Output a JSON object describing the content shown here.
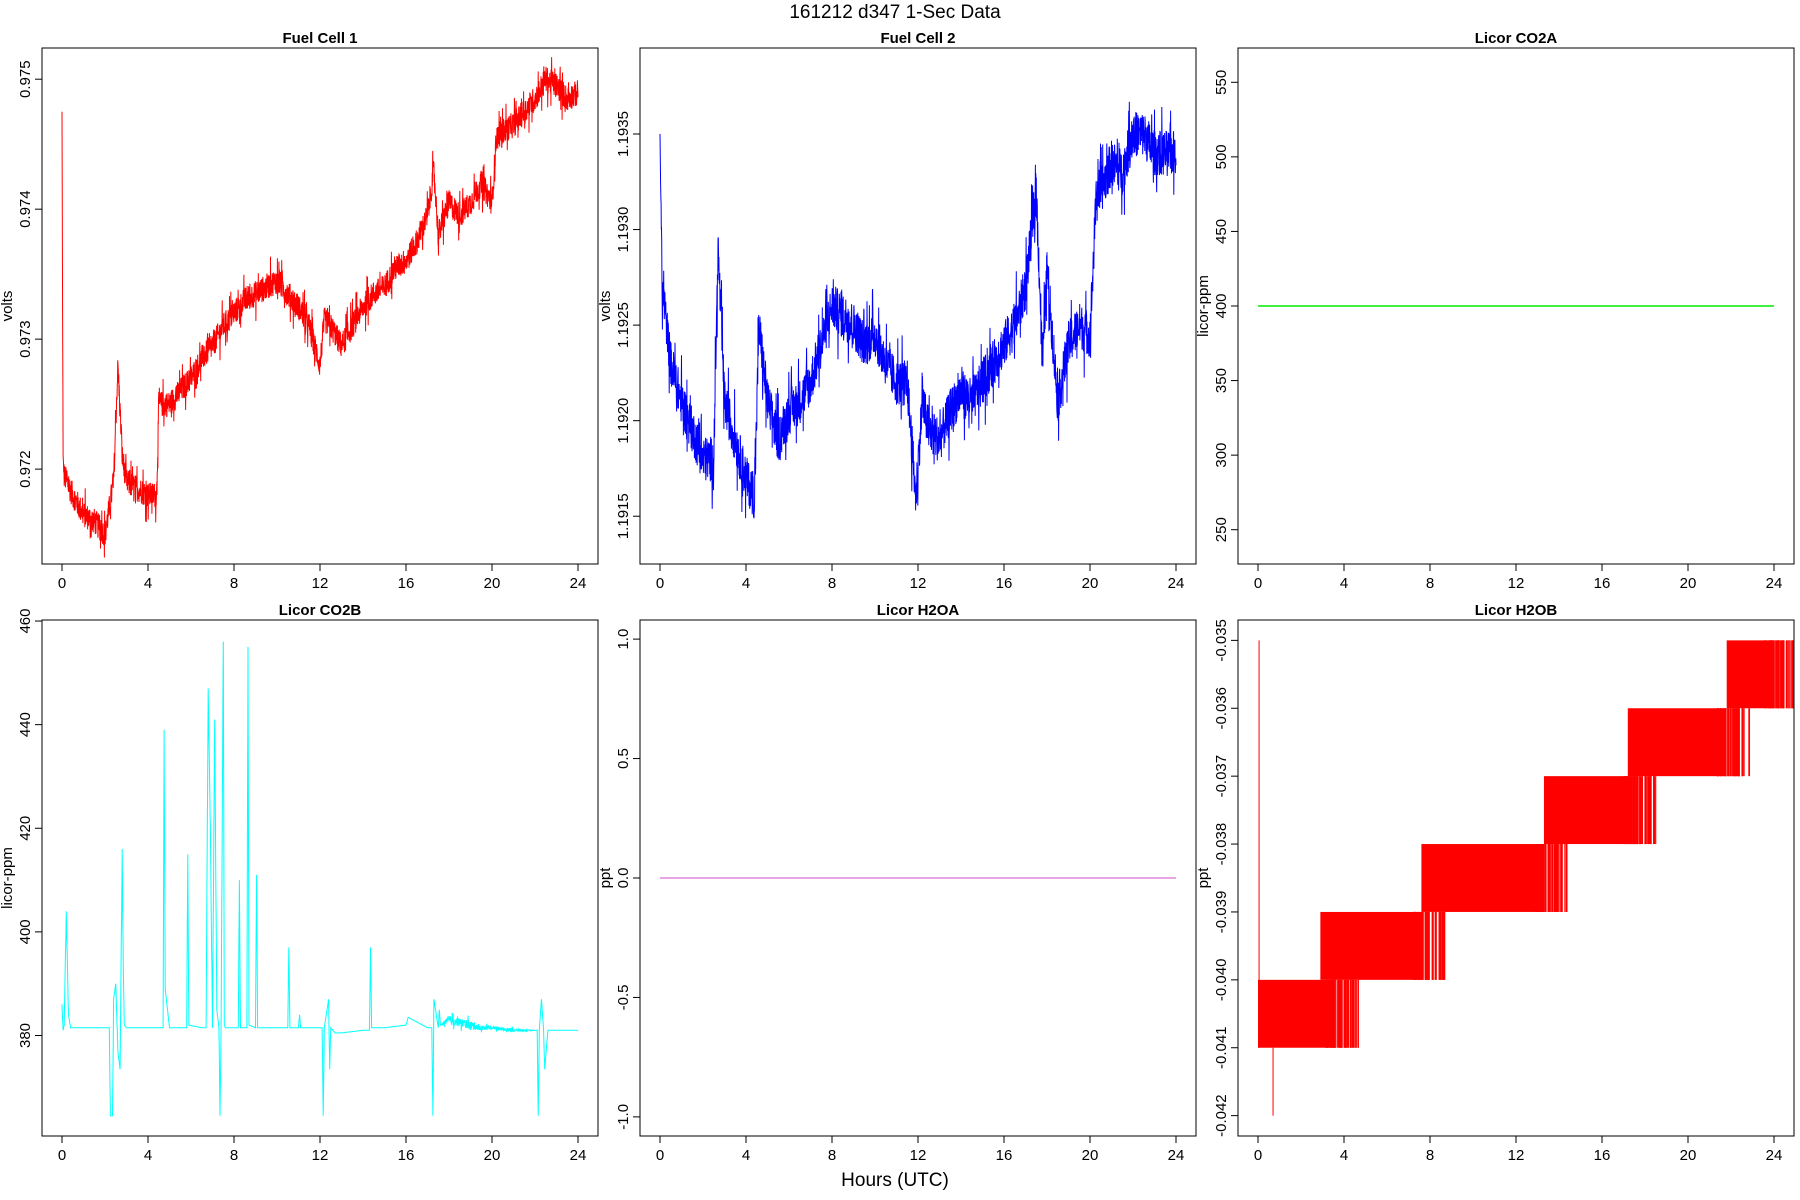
{
  "figure": {
    "title": "161212   d347   1-Sec Data",
    "xlabel": "Hours (UTC)"
  },
  "chart_data": [
    {
      "type": "line",
      "title": "Fuel Cell 1",
      "ylabel": "volts",
      "xlabel": "",
      "color": "#ff0000",
      "xlim": [
        0,
        24
      ],
      "ylim": [
        0.97127,
        0.97524
      ],
      "xticks": [
        0,
        4,
        8,
        12,
        16,
        20,
        24
      ],
      "yticks": [
        0.972,
        0.973,
        0.974,
        0.975
      ],
      "ytick_labels": [
        "0.972",
        "0.973",
        "0.974",
        "0.975"
      ],
      "series": [
        {
          "x": [
            0.0,
            0.05,
            0.1,
            0.5,
            1.0,
            1.5,
            2.0,
            2.4,
            2.6,
            2.8,
            3.0,
            3.5,
            4.0,
            4.4,
            4.5,
            5.0,
            5.5,
            6.0,
            6.5,
            7.0,
            7.5,
            8.0,
            8.5,
            9.0,
            9.5,
            10.0,
            10.5,
            11.0,
            11.5,
            12.0,
            12.2,
            12.5,
            13.0,
            13.5,
            14.0,
            14.5,
            15.0,
            15.5,
            16.0,
            16.5,
            17.0,
            17.3,
            17.5,
            18.0,
            18.5,
            19.0,
            19.5,
            20.0,
            20.2,
            20.5,
            21.0,
            21.5,
            22.0,
            22.5,
            23.0,
            23.5,
            24.0
          ],
          "y": [
            0.97475,
            0.9721,
            0.97195,
            0.9718,
            0.97165,
            0.9716,
            0.9715,
            0.9719,
            0.9728,
            0.9721,
            0.9719,
            0.97185,
            0.9718,
            0.9718,
            0.9725,
            0.9725,
            0.9726,
            0.9727,
            0.97285,
            0.97295,
            0.9731,
            0.9732,
            0.9733,
            0.97335,
            0.9734,
            0.97345,
            0.97335,
            0.97325,
            0.9731,
            0.9728,
            0.97315,
            0.9731,
            0.97295,
            0.9731,
            0.97325,
            0.97335,
            0.9734,
            0.97355,
            0.9736,
            0.97375,
            0.97395,
            0.9743,
            0.9738,
            0.97405,
            0.97395,
            0.97405,
            0.9742,
            0.97405,
            0.97455,
            0.9746,
            0.97465,
            0.97475,
            0.97485,
            0.975,
            0.97495,
            0.97485,
            0.9749
          ],
          "noise": [
            0,
            0,
            0.0001,
            0.0001,
            0.0001,
            0.0001,
            0.0001,
            0.0001,
            0.0001,
            0.0001,
            0.0001,
            0.0001,
            0.0001,
            0.0001,
            0.0001,
            0.0001,
            0.0001,
            0.0001,
            0.0001,
            0.0001,
            0.0001,
            0.0001,
            0.0001,
            0.0001,
            0.0001,
            0.0001,
            0.0001,
            0.0001,
            0.0001,
            0.0001,
            0.0001,
            0.0001,
            0.0001,
            0.0001,
            0.0001,
            0.0001,
            0.0001,
            0.0001,
            0.0001,
            0.0001,
            0.0001,
            0.0001,
            0.0001,
            0.0001,
            0.0001,
            0.0001,
            0.0001,
            0.0001,
            0.0001,
            0.0001,
            0.0001,
            0.0001,
            0.0001,
            0.0001,
            0.0001,
            0.0001,
            0.0001
          ]
        }
      ]
    },
    {
      "type": "line",
      "title": "Fuel Cell 2",
      "ylabel": "volts",
      "xlabel": "",
      "color": "#0000ff",
      "xlim": [
        0,
        24
      ],
      "ylim": [
        1.19125,
        1.19395
      ],
      "xticks": [
        0,
        4,
        8,
        12,
        16,
        20,
        24
      ],
      "yticks": [
        1.1915,
        1.192,
        1.1925,
        1.193,
        1.1935
      ],
      "ytick_labels": [
        "1.1915",
        "1.1920",
        "1.1925",
        "1.1930",
        "1.1935"
      ],
      "series": [
        {
          "x": [
            0.0,
            0.1,
            0.5,
            1.0,
            1.5,
            2.0,
            2.5,
            2.7,
            3.0,
            3.5,
            4.0,
            4.4,
            4.6,
            5.0,
            5.5,
            6.0,
            6.5,
            7.0,
            7.5,
            8.0,
            8.5,
            9.0,
            9.5,
            10.0,
            10.5,
            11.0,
            11.5,
            11.9,
            12.2,
            12.5,
            13.0,
            13.5,
            14.0,
            14.5,
            15.0,
            15.5,
            16.0,
            16.5,
            17.0,
            17.5,
            17.8,
            18.0,
            18.5,
            19.0,
            19.5,
            20.0,
            20.3,
            20.5,
            21.0,
            21.5,
            22.0,
            22.5,
            23.0,
            23.5,
            24.0
          ],
          "y": [
            1.1935,
            1.1927,
            1.1923,
            1.1921,
            1.19195,
            1.1918,
            1.1918,
            1.1929,
            1.1921,
            1.1919,
            1.1917,
            1.1916,
            1.1925,
            1.1921,
            1.1919,
            1.19205,
            1.1921,
            1.1922,
            1.1924,
            1.1926,
            1.19255,
            1.1925,
            1.1924,
            1.19245,
            1.1923,
            1.1922,
            1.1922,
            1.1916,
            1.1921,
            1.19195,
            1.1919,
            1.19205,
            1.19215,
            1.1921,
            1.1922,
            1.1923,
            1.1924,
            1.1925,
            1.1927,
            1.1932,
            1.1923,
            1.1928,
            1.1921,
            1.1924,
            1.1925,
            1.19245,
            1.1932,
            1.1932,
            1.19335,
            1.1933,
            1.1935,
            1.1935,
            1.1934,
            1.1934,
            1.1934
          ],
          "noise": [
            0,
            0.0001,
            0.00012,
            0.00012,
            0.00012,
            0.00012,
            0.00012,
            0.00012,
            0.00012,
            0.00012,
            0.00012,
            0.00012,
            0.00012,
            0.00012,
            0.00012,
            0.00012,
            0.00012,
            0.00012,
            0.00012,
            0.00012,
            0.00012,
            0.00012,
            0.00012,
            0.00012,
            0.00012,
            0.00012,
            0.00012,
            0.00012,
            0.00012,
            0.00012,
            0.00012,
            0.00012,
            0.00012,
            0.00012,
            0.00012,
            0.00012,
            0.00012,
            0.00012,
            0.00012,
            0.00012,
            0.00012,
            0.00012,
            0.00012,
            0.00012,
            0.00012,
            0.00012,
            0.00012,
            0.00012,
            0.00012,
            0.00012,
            0.00012,
            0.00012,
            0.00012,
            0.00012,
            0.00012
          ]
        }
      ]
    },
    {
      "type": "line",
      "title": "Licor CO2A",
      "ylabel": "licor-ppm",
      "xlabel": "",
      "color": "#00ee00",
      "xlim": [
        0,
        24
      ],
      "ylim": [
        227,
        573
      ],
      "xticks": [
        0,
        4,
        8,
        12,
        16,
        20,
        24
      ],
      "yticks": [
        250,
        300,
        350,
        400,
        450,
        500,
        550
      ],
      "ytick_labels": [
        "250",
        "300",
        "350",
        "400",
        "450",
        "500",
        "550"
      ],
      "series": [
        {
          "x": [
            0,
            24
          ],
          "y": [
            400,
            400
          ],
          "noise": [
            0,
            0
          ]
        }
      ]
    },
    {
      "type": "line",
      "title": "Licor CO2B",
      "ylabel": "licor-ppm",
      "xlabel": "",
      "color": "#00ffff",
      "xlim": [
        0,
        24
      ],
      "ylim": [
        360.6,
        460.2
      ],
      "xticks": [
        0,
        4,
        8,
        12,
        16,
        20,
        24
      ],
      "yticks": [
        380,
        400,
        420,
        440,
        460
      ],
      "ytick_labels": [
        "380",
        "400",
        "420",
        "440",
        "460"
      ],
      "series": [
        {
          "x": [
            0.0,
            0.05,
            0.1,
            0.2,
            0.3,
            0.4,
            0.6,
            1.0,
            2.0,
            2.2,
            2.25,
            2.35,
            2.4,
            2.5,
            2.6,
            2.7,
            2.8,
            2.85,
            2.9,
            3.0,
            4.0,
            4.7,
            4.75,
            4.8,
            5.0,
            5.8,
            5.85,
            5.9,
            6.5,
            6.7,
            6.8,
            6.9,
            7.0,
            7.1,
            7.2,
            7.3,
            7.35,
            7.4,
            7.5,
            7.55,
            7.6,
            8.0,
            8.2,
            8.25,
            8.3,
            8.6,
            8.65,
            8.7,
            9.0,
            9.05,
            9.1,
            10.0,
            10.5,
            10.55,
            10.6,
            11.0,
            11.05,
            11.1,
            12.0,
            12.1,
            12.15,
            12.2,
            12.4,
            12.45,
            12.5,
            12.7,
            13.0,
            14.0,
            14.3,
            14.35,
            14.4,
            15.0,
            16.0,
            16.1,
            17.0,
            17.2,
            17.25,
            17.3,
            17.5,
            17.55,
            17.6,
            18.0,
            18.5,
            19.0,
            19.5,
            20.0,
            21.0,
            22.0,
            22.1,
            22.15,
            22.2,
            22.3,
            22.4,
            22.45,
            22.6,
            22.7,
            23.0,
            23.5,
            24.0
          ],
          "y": [
            386,
            381,
            382,
            404,
            384,
            381.5,
            381.5,
            381.5,
            381.5,
            381.5,
            364.5,
            364.5,
            387,
            390,
            377,
            373.5,
            416,
            393,
            382,
            381.5,
            381.5,
            381.5,
            439,
            389,
            381.5,
            381.5,
            415,
            382,
            381.5,
            381.5,
            447,
            420,
            381.5,
            441,
            385,
            381.5,
            364.5,
            381.5,
            456,
            382,
            381.5,
            381.5,
            381.5,
            410,
            381.5,
            381.5,
            455,
            382,
            381.5,
            411,
            381.5,
            381.5,
            381.5,
            397,
            381.5,
            381.5,
            384,
            381.5,
            381.5,
            381.5,
            364.5,
            381.5,
            387,
            373.5,
            381.5,
            380.5,
            380.5,
            381,
            381,
            397,
            381.5,
            381.5,
            382,
            383.5,
            381.5,
            381.5,
            364.5,
            387,
            381.5,
            385,
            382,
            383,
            382.5,
            382,
            381.5,
            381.5,
            381,
            381,
            381,
            364.5,
            381,
            387,
            381,
            373.5,
            381,
            381,
            381,
            381,
            381
          ],
          "noise": [
            0,
            0,
            0,
            0,
            0,
            0,
            0,
            0,
            0,
            0,
            0,
            0,
            0,
            0,
            0,
            0,
            0,
            0,
            0,
            0,
            0,
            0,
            0,
            0,
            0,
            0,
            0,
            0,
            0,
            0,
            0,
            0,
            0,
            0,
            0,
            0,
            0,
            0,
            0,
            0,
            0,
            0,
            0,
            0,
            0,
            0,
            0,
            0,
            0,
            0,
            0,
            0,
            0,
            0,
            0,
            0,
            0,
            0,
            0,
            0,
            0,
            0,
            0,
            0,
            0,
            0,
            0,
            0,
            0,
            0,
            0,
            0,
            0,
            0,
            0,
            0,
            0,
            0,
            0,
            0,
            0,
            0.8,
            0.8,
            0.8,
            0.5,
            0.3,
            0.3,
            0,
            0,
            0,
            0,
            0,
            0,
            0,
            0,
            0,
            0,
            0,
            0
          ]
        }
      ]
    },
    {
      "type": "line",
      "title": "Licor H2OA",
      "ylabel": "ppt",
      "xlabel": "",
      "color": "#dd88dd",
      "xlim": [
        0,
        24
      ],
      "ylim": [
        -1.08,
        1.08
      ],
      "xticks": [
        0,
        4,
        8,
        12,
        16,
        20,
        24
      ],
      "yticks": [
        -1.0,
        -0.5,
        0.0,
        0.5,
        1.0
      ],
      "ytick_labels": [
        "-1.0",
        "-0.5",
        "0.0",
        "0.5",
        "1.0"
      ],
      "series": [
        {
          "x": [
            0,
            24
          ],
          "y": [
            0,
            0
          ],
          "noise": [
            0,
            0
          ]
        }
      ]
    },
    {
      "type": "line",
      "title": "Licor H2OB",
      "ylabel": "ppt",
      "xlabel": "",
      "color": "#ff0000",
      "xlim": [
        0,
        24
      ],
      "ylim": [
        -0.0423,
        -0.0347
      ],
      "xticks": [
        0,
        4,
        8,
        12,
        16,
        20,
        24
      ],
      "yticks": [
        -0.042,
        -0.041,
        -0.04,
        -0.039,
        -0.038,
        -0.037,
        -0.036,
        -0.035
      ],
      "ytick_labels": [
        "-0.042",
        "-0.041",
        "-0.040",
        "-0.039",
        "-0.038",
        "-0.037",
        "-0.036",
        "-0.035"
      ],
      "series": [
        {
          "type": "step-band",
          "bands": [
            {
              "x0": 0.0,
              "x1": 3.6,
              "low": -0.041,
              "high": -0.04
            },
            {
              "x0": 2.9,
              "x1": 7.6,
              "low": -0.04,
              "high": -0.039
            },
            {
              "x0": 7.6,
              "x1": 13.3,
              "low": -0.039,
              "high": -0.038
            },
            {
              "x0": 13.3,
              "x1": 17.4,
              "low": -0.038,
              "high": -0.037
            },
            {
              "x0": 17.2,
              "x1": 21.8,
              "low": -0.037,
              "high": -0.036
            },
            {
              "x0": 21.8,
              "x1": 24.0,
              "low": -0.036,
              "high": -0.035
            }
          ],
          "spikes": [
            {
              "x": 0.05,
              "from": -0.041,
              "to": -0.035
            },
            {
              "x": 0.7,
              "from": -0.041,
              "to": -0.042
            }
          ]
        }
      ]
    }
  ]
}
